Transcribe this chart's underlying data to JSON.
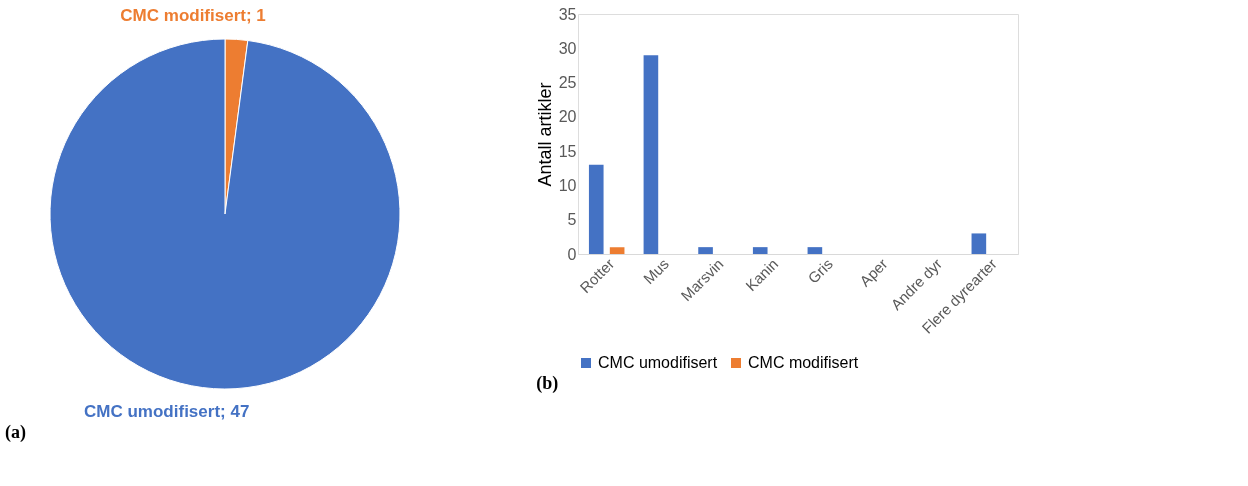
{
  "chart_data": [
    {
      "type": "pie",
      "categories": [
        "CMC modifisert",
        "CMC umodifisert"
      ],
      "values": [
        1,
        47
      ],
      "colors": [
        "#ed7d31",
        "#4472c4"
      ],
      "value_labels": [
        "; 1",
        "; 47"
      ],
      "legend": false,
      "annotations": [
        "(a)"
      ]
    },
    {
      "type": "bar",
      "categories": [
        "Rotter",
        "Mus",
        "Marsvin",
        "Kanin",
        "Gris",
        "Aper",
        "Andre dyr",
        "Flere dyrearter"
      ],
      "series": [
        {
          "name": "CMC umodifisert",
          "color": "#4472c4",
          "values": [
            13,
            29,
            1,
            1,
            1,
            0,
            0,
            3
          ]
        },
        {
          "name": "CMC modifisert",
          "color": "#ed7d31",
          "values": [
            1,
            0,
            0,
            0,
            0,
            0,
            0,
            0
          ]
        }
      ],
      "ylabel": "Antall artikler",
      "ylim": [
        0,
        35
      ],
      "yticks": [
        0,
        5,
        10,
        15,
        20,
        25,
        30,
        35
      ],
      "grid": false,
      "legend": "bottom",
      "annotations": [
        "(b)"
      ]
    }
  ]
}
